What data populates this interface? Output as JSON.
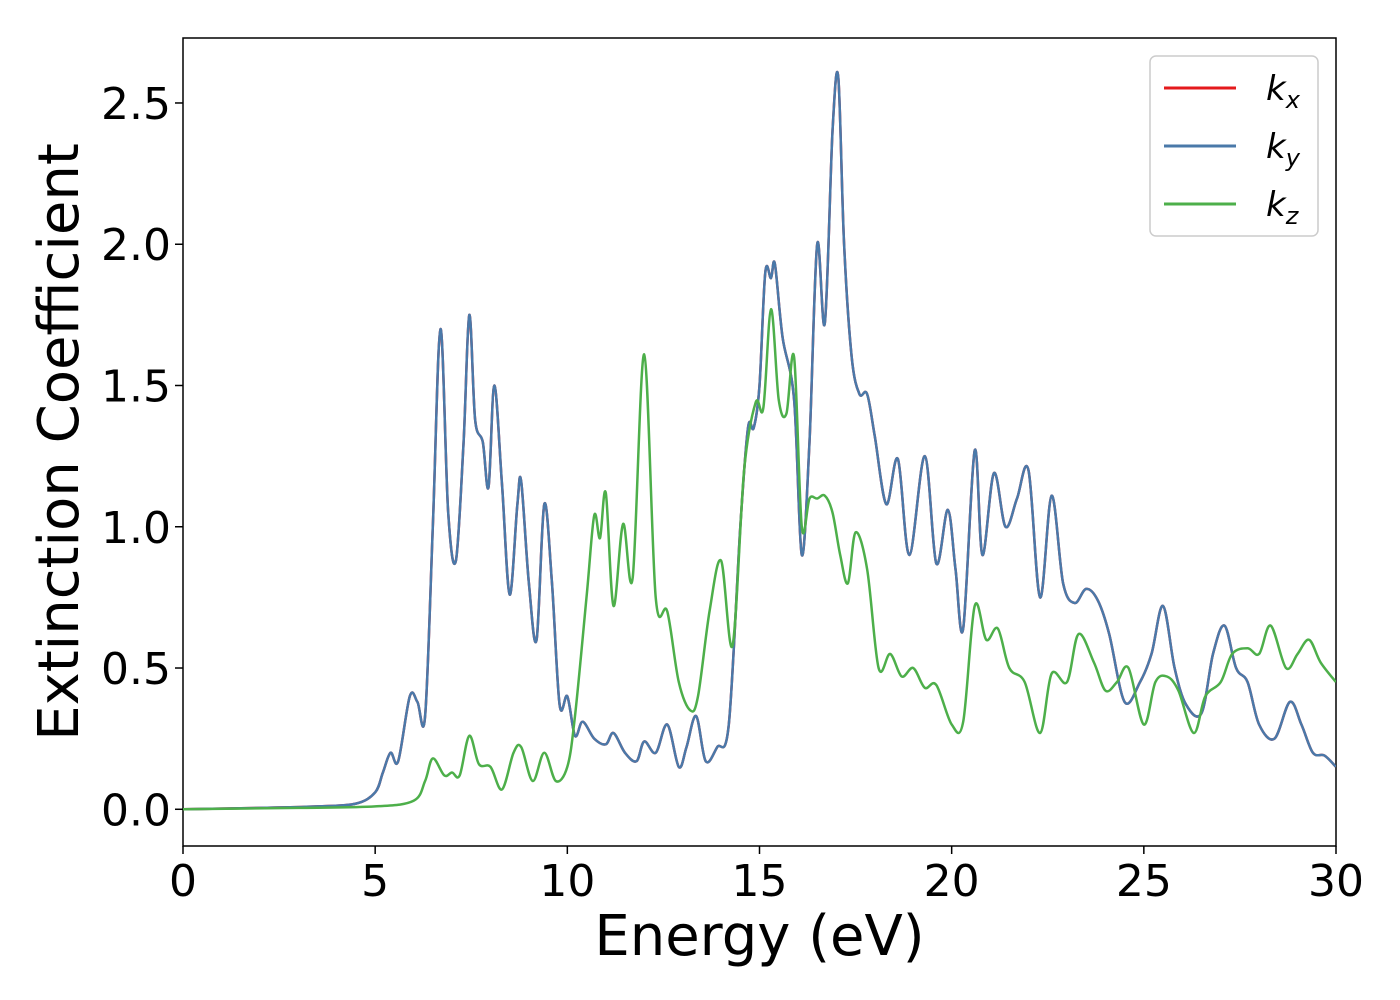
{
  "chart_data": {
    "type": "line",
    "xlabel": "Energy (eV)",
    "ylabel": "Extinction Coefficient",
    "xlim": [
      0,
      30
    ],
    "ylim": [
      -0.13,
      2.73
    ],
    "xticks": [
      0,
      5,
      10,
      15,
      20,
      25,
      30
    ],
    "yticks": [
      0.0,
      0.5,
      1.0,
      1.5,
      2.0,
      2.5
    ],
    "xtick_labels": [
      "0",
      "5",
      "10",
      "15",
      "20",
      "25",
      "30"
    ],
    "ytick_labels": [
      "0.0",
      "0.5",
      "1.0",
      "1.5",
      "2.0",
      "2.5"
    ],
    "grid": false,
    "legend_position": "top-right",
    "series": [
      {
        "name": "kx",
        "label_main": "k",
        "label_sub": "x",
        "color": "#e41a1c",
        "x": [
          0,
          2,
          3.5,
          4.5,
          5.0,
          5.2,
          5.4,
          5.6,
          5.9,
          6.1,
          6.3,
          6.5,
          6.7,
          6.9,
          7.1,
          7.3,
          7.45,
          7.6,
          7.8,
          7.95,
          8.1,
          8.3,
          8.5,
          8.7,
          8.8,
          9.0,
          9.2,
          9.4,
          9.6,
          9.8,
          10.0,
          10.2,
          10.4,
          10.7,
          11.0,
          11.2,
          11.5,
          11.8,
          12.0,
          12.3,
          12.6,
          12.9,
          13.1,
          13.35,
          13.6,
          13.9,
          14.2,
          14.5,
          14.7,
          14.85,
          15.0,
          15.15,
          15.3,
          15.4,
          15.6,
          15.9,
          16.1,
          16.3,
          16.5,
          16.7,
          16.9,
          17.05,
          17.2,
          17.4,
          17.6,
          17.8,
          18.0,
          18.3,
          18.6,
          18.9,
          19.3,
          19.6,
          19.9,
          20.1,
          20.3,
          20.6,
          20.8,
          21.1,
          21.4,
          21.7,
          22.0,
          22.3,
          22.6,
          22.9,
          23.2,
          23.5,
          23.8,
          24.1,
          24.5,
          24.9,
          25.2,
          25.5,
          25.8,
          26.1,
          26.5,
          26.8,
          27.1,
          27.4,
          27.7,
          28.0,
          28.4,
          28.8,
          29.1,
          29.4,
          29.7,
          30.0
        ],
        "y": [
          0.0,
          0.005,
          0.01,
          0.02,
          0.06,
          0.13,
          0.2,
          0.17,
          0.4,
          0.38,
          0.33,
          1.0,
          1.7,
          1.05,
          0.88,
          1.3,
          1.75,
          1.38,
          1.3,
          1.14,
          1.5,
          1.15,
          0.76,
          1.08,
          1.16,
          0.8,
          0.6,
          1.08,
          0.8,
          0.37,
          0.4,
          0.26,
          0.31,
          0.25,
          0.23,
          0.27,
          0.2,
          0.17,
          0.24,
          0.2,
          0.3,
          0.15,
          0.22,
          0.33,
          0.17,
          0.22,
          0.3,
          1.0,
          1.35,
          1.35,
          1.5,
          1.9,
          1.88,
          1.93,
          1.67,
          1.45,
          0.9,
          1.3,
          2.0,
          1.72,
          2.4,
          2.59,
          2.0,
          1.6,
          1.47,
          1.47,
          1.32,
          1.08,
          1.24,
          0.9,
          1.25,
          0.87,
          1.06,
          0.85,
          0.64,
          1.27,
          0.9,
          1.19,
          1.0,
          1.1,
          1.2,
          0.75,
          1.11,
          0.8,
          0.73,
          0.78,
          0.74,
          0.62,
          0.38,
          0.45,
          0.55,
          0.72,
          0.5,
          0.37,
          0.34,
          0.55,
          0.65,
          0.5,
          0.45,
          0.3,
          0.25,
          0.38,
          0.3,
          0.2,
          0.19,
          0.15
        ]
      },
      {
        "name": "ky",
        "label_main": "k",
        "label_sub": "y",
        "color": "#4a79a9",
        "x": [
          0,
          2,
          3.5,
          4.5,
          5.0,
          5.2,
          5.4,
          5.6,
          5.9,
          6.1,
          6.3,
          6.5,
          6.7,
          6.9,
          7.1,
          7.3,
          7.45,
          7.6,
          7.8,
          7.95,
          8.1,
          8.3,
          8.5,
          8.7,
          8.8,
          9.0,
          9.2,
          9.4,
          9.6,
          9.8,
          10.0,
          10.2,
          10.4,
          10.7,
          11.0,
          11.2,
          11.5,
          11.8,
          12.0,
          12.3,
          12.6,
          12.9,
          13.1,
          13.35,
          13.6,
          13.9,
          14.2,
          14.5,
          14.7,
          14.85,
          15.0,
          15.15,
          15.3,
          15.4,
          15.6,
          15.9,
          16.1,
          16.3,
          16.5,
          16.7,
          16.9,
          17.05,
          17.2,
          17.4,
          17.6,
          17.8,
          18.0,
          18.3,
          18.6,
          18.9,
          19.3,
          19.6,
          19.9,
          20.1,
          20.3,
          20.6,
          20.8,
          21.1,
          21.4,
          21.7,
          22.0,
          22.3,
          22.6,
          22.9,
          23.2,
          23.5,
          23.8,
          24.1,
          24.5,
          24.9,
          25.2,
          25.5,
          25.8,
          26.1,
          26.5,
          26.8,
          27.1,
          27.4,
          27.7,
          28.0,
          28.4,
          28.8,
          29.1,
          29.4,
          29.7,
          30.0
        ],
        "y": [
          0.0,
          0.005,
          0.01,
          0.02,
          0.06,
          0.13,
          0.2,
          0.17,
          0.4,
          0.38,
          0.33,
          1.0,
          1.7,
          1.05,
          0.88,
          1.3,
          1.75,
          1.38,
          1.3,
          1.14,
          1.5,
          1.15,
          0.76,
          1.08,
          1.16,
          0.8,
          0.6,
          1.08,
          0.8,
          0.37,
          0.4,
          0.26,
          0.31,
          0.25,
          0.23,
          0.27,
          0.2,
          0.17,
          0.24,
          0.2,
          0.3,
          0.15,
          0.22,
          0.33,
          0.17,
          0.22,
          0.3,
          1.0,
          1.35,
          1.35,
          1.5,
          1.9,
          1.88,
          1.93,
          1.67,
          1.45,
          0.9,
          1.3,
          2.0,
          1.72,
          2.4,
          2.59,
          2.0,
          1.6,
          1.47,
          1.47,
          1.32,
          1.08,
          1.24,
          0.9,
          1.25,
          0.87,
          1.06,
          0.85,
          0.64,
          1.27,
          0.9,
          1.19,
          1.0,
          1.1,
          1.2,
          0.75,
          1.11,
          0.8,
          0.73,
          0.78,
          0.74,
          0.62,
          0.38,
          0.45,
          0.55,
          0.72,
          0.5,
          0.37,
          0.34,
          0.55,
          0.65,
          0.5,
          0.45,
          0.3,
          0.25,
          0.38,
          0.3,
          0.2,
          0.19,
          0.15
        ]
      },
      {
        "name": "kz",
        "label_main": "k",
        "label_sub": "z",
        "color": "#4daf4a",
        "x": [
          0,
          3,
          5,
          6.0,
          6.3,
          6.5,
          6.8,
          7.0,
          7.2,
          7.45,
          7.7,
          8.0,
          8.3,
          8.6,
          8.8,
          9.1,
          9.4,
          9.7,
          10.0,
          10.2,
          10.5,
          10.7,
          10.85,
          11.0,
          11.2,
          11.45,
          11.7,
          12.0,
          12.3,
          12.6,
          12.9,
          13.2,
          13.4,
          13.7,
          14.0,
          14.3,
          14.6,
          14.9,
          15.1,
          15.3,
          15.5,
          15.7,
          15.9,
          16.1,
          16.3,
          16.5,
          16.7,
          16.9,
          17.1,
          17.3,
          17.5,
          17.8,
          18.1,
          18.4,
          18.7,
          19.0,
          19.3,
          19.6,
          20.0,
          20.3,
          20.6,
          20.9,
          21.2,
          21.5,
          21.9,
          22.3,
          22.6,
          23.0,
          23.3,
          23.7,
          24.0,
          24.3,
          24.6,
          25.0,
          25.3,
          25.6,
          25.9,
          26.3,
          26.6,
          27.0,
          27.3,
          27.7,
          28.0,
          28.3,
          28.7,
          29.0,
          29.3,
          29.6,
          30.0
        ],
        "y": [
          0.0,
          0.005,
          0.01,
          0.03,
          0.1,
          0.18,
          0.12,
          0.13,
          0.12,
          0.26,
          0.16,
          0.15,
          0.07,
          0.2,
          0.22,
          0.1,
          0.2,
          0.1,
          0.15,
          0.33,
          0.75,
          1.04,
          0.96,
          1.12,
          0.72,
          1.01,
          0.82,
          1.61,
          0.75,
          0.7,
          0.45,
          0.35,
          0.4,
          0.7,
          0.88,
          0.58,
          1.2,
          1.44,
          1.42,
          1.77,
          1.45,
          1.4,
          1.6,
          1.0,
          1.1,
          1.1,
          1.11,
          1.05,
          0.9,
          0.8,
          0.98,
          0.85,
          0.5,
          0.55,
          0.47,
          0.5,
          0.43,
          0.44,
          0.3,
          0.31,
          0.72,
          0.6,
          0.64,
          0.5,
          0.45,
          0.27,
          0.48,
          0.45,
          0.62,
          0.52,
          0.42,
          0.45,
          0.5,
          0.3,
          0.45,
          0.47,
          0.42,
          0.27,
          0.4,
          0.45,
          0.55,
          0.57,
          0.55,
          0.65,
          0.5,
          0.55,
          0.6,
          0.52,
          0.45
        ]
      }
    ]
  }
}
